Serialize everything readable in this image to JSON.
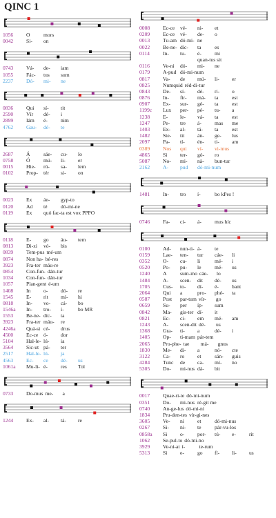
{
  "title": "QINC 1",
  "columns": [
    {
      "sections": [
        {
          "rows": [
            {
              "id": "1056",
              "cells": [
                "O",
                "mors"
              ]
            },
            {
              "id": "0042",
              "cells": [
                "Si-",
                "on"
              ]
            }
          ]
        },
        {
          "rows": [
            {
              "id": "0743",
              "cells": [
                "Vá-",
                "de-",
                "iam"
              ]
            },
            {
              "id": "1055",
              "cells": [
                "Fác-",
                "tus",
                "sum"
              ]
            },
            {
              "id": "2237",
              "cells": [
                "Dó-",
                "mi-",
                "ne"
              ],
              "color": "#4aa3df"
            }
          ]
        },
        {
          "rows": [
            {
              "id": "0836",
              "cells": [
                "Qui",
                "sí-",
                "tit"
              ]
            },
            {
              "id": "2590",
              "cells": [
                "Vír",
                "dé-",
                "i"
              ]
            },
            {
              "id": "2899",
              "cells": [
                "Iám",
                "é-",
                "nim"
              ]
            },
            {
              "id": "4762",
              "cells": [
                "Gau-",
                "dé-",
                "te"
              ],
              "color": "#4aa3df"
            }
          ]
        },
        {
          "rows": [
            {
              "id": "2687",
              "cells": [
                "Á",
                "sáe-",
                "cu-",
                "lo"
              ]
            },
            {
              "id": "0758",
              "cells": [
                "Ó",
                "mú-",
                "li-",
                "er"
              ]
            },
            {
              "id": "0015",
              "cells": [
                "Hie-",
                "rú-",
                "sa-",
                "lem"
              ]
            },
            {
              "id": "0102",
              "cells": [
                "Prop-",
                "tér",
                "si-",
                "on"
              ]
            }
          ]
        },
        {
          "rows": [
            {
              "id": "0023",
              "cells": [
                "Ex",
                "áe-",
                "gyp-to"
              ]
            },
            {
              "id": "0120",
              "cells": [
                "Ad",
                "té",
                "dó-mi-ne"
              ]
            },
            {
              "id": "0119",
              "cells": [
                "Ex",
                "quó fac-ta est vox PPPO"
              ]
            }
          ]
        },
        {
          "rows": [
            {
              "id": "0118",
              "cells": [
                "E-",
                "go",
                "áu-",
                "tem"
              ]
            },
            {
              "id": "0813",
              "cells": [
                "Di-xi",
                "vó-",
                "bis"
              ]
            },
            {
              "id": "0839",
              "cells": [
                "Tem-pus",
                "mé-um"
              ]
            },
            {
              "id": "0874",
              "cells": [
                "Non ha-",
                "bé-res"
              ]
            },
            {
              "id": "3923",
              "cells": [
                "Fra-ter",
                "máu-re"
              ]
            },
            {
              "id": "0854",
              "cells": [
                "Con-fun-",
                "dán-tur"
              ]
            },
            {
              "id": "1034",
              "cells": [
                "Con-fun-",
                "dán-tur"
              ]
            },
            {
              "id": "1057",
              "cells": [
                "Plan-gent",
                "é-um"
              ]
            },
            {
              "id": "1408",
              "cells": [
                "In",
                "o-",
                "dó-",
                "re"
              ]
            },
            {
              "id": "1545",
              "cells": [
                "E-",
                "rit",
                "mí-",
                "hi"
              ]
            },
            {
              "id": "0818",
              "cells": [
                "In-",
                "vo-",
                "cá-",
                "bo"
              ]
            },
            {
              "id": "1546a",
              "cells": [
                "In-",
                "tro-",
                "í-",
                "bo MR"
              ]
            },
            {
              "id": "1553",
              "cells": [
                "Be-ne-",
                "díc-",
                "ta"
              ]
            },
            {
              "id": "3923",
              "cells": [
                "Fra-ter",
                "máu-",
                "re"
              ]
            },
            {
              "id": "4246a",
              "cells": [
                "Quá-si",
                "cé-",
                "drus"
              ]
            },
            {
              "id": "4500",
              "cells": [
                "Ec-ce",
                "ó-",
                "dor"
              ]
            },
            {
              "id": "5104",
              "cells": [
                "Hal-le-",
                "lú-",
                "ia"
              ]
            },
            {
              "id": "3564",
              "cells": [
                "Sic-ut",
                "pá-",
                "ter"
              ]
            },
            {
              "id": "2517",
              "cells": [
                "Hal-le-",
                "lú-",
                "ja"
              ],
              "color": "#4aa3df"
            },
            {
              "id": "4563",
              "cells": [
                "Ec-",
                "ce",
                "dé-",
                "us"
              ],
              "color": "#4aa3df"
            },
            {
              "id": "1061a",
              "cells": [
                "Mu-li-",
                "é-",
                "res",
                "Tol"
              ]
            }
          ]
        },
        {
          "rows": [
            {
              "id": "0733",
              "cells": [
                "Do-mus",
                "me-",
                "a"
              ]
            }
          ]
        },
        {
          "rows": [
            {
              "id": "1244",
              "cells": [
                "Ex-",
                "al-",
                "tá-",
                "re"
              ]
            }
          ]
        }
      ]
    },
    {
      "sections": [
        {
          "rows": [
            {
              "id": "0008",
              "cells": [
                "Ec-ce",
                "vé-",
                "ni-",
                "et"
              ]
            },
            {
              "id": "0209",
              "cells": [
                "Ec-ce",
                "vé-",
                "de-",
                "o"
              ]
            },
            {
              "id": "0013",
              "cells": [
                "Tu-am",
                "dó-mi-",
                "ne"
              ]
            },
            {
              "id": "0022",
              "cells": [
                "Be-ne-",
                "díc-",
                "ta",
                "es"
              ]
            },
            {
              "id": "0114",
              "cells": [
                "In-",
                "tu-",
                "é-",
                "mi"
              ]
            },
            {
              "cells": [
                "",
                "",
                "quan-tus sit"
              ]
            },
            {
              "id": "0116",
              "cells": [
                "Ve-ni",
                "dó-",
                "mi-",
                "ne"
              ]
            },
            {
              "id": "0179",
              "cells": [
                "A-pud",
                "dó-mi-num"
              ]
            },
            {
              "id": "0817",
              "cells": [
                "Va-",
                "de",
                "mú-",
                "li-",
                "er"
              ]
            },
            {
              "id": "0825",
              "cells": [
                "Numquid",
                "réd-di-tur"
              ]
            },
            {
              "id": "0843",
              "cells": [
                "De-",
                "sí-",
                "dé-",
                "ri-",
                "o"
              ]
            },
            {
              "id": "0876",
              "cells": [
                "In-",
                "fir-",
                "má-",
                "ta",
                "est"
              ]
            },
            {
              "id": "0907",
              "cells": [
                "Ex-",
                "sur-",
                "gé-",
                "ta",
                "est"
              ]
            },
            {
              "id": "1199c",
              "cells": [
                "Lux",
                "per-",
                "pé-",
                "tu-",
                "a"
              ]
            },
            {
              "id": "1238",
              "cells": [
                "E-",
                "le-",
                "vá-",
                "ta",
                "est"
              ]
            },
            {
              "id": "1247",
              "cells": [
                "Pe-",
                "tre",
                "á-",
                "mas",
                "me"
              ]
            },
            {
              "id": "1403",
              "cells": [
                "Ex-",
                "al-",
                "tá-",
                "ta",
                "est"
              ]
            },
            {
              "id": "1482",
              "cells": [
                "Ste-",
                "tit",
                "án-",
                "ge-",
                "lus"
              ]
            },
            {
              "id": "2097",
              "cells": [
                "Pa-",
                "tí-",
                "én-",
                "ti-",
                "am"
              ]
            },
            {
              "id": "0389",
              "cells": [
                "Nos",
                "qui",
                "ví-",
                "vi-mus"
              ],
              "color": "#e8743b"
            },
            {
              "id": "4865",
              "cells": [
                "Si",
                "ter-",
                "gó-",
                "ro"
              ]
            },
            {
              "id": "5087",
              "cells": [
                "No-",
                "mi-",
                "nà-",
                "bun-tur"
              ]
            },
            {
              "id": "2162",
              "cells": [
                "A-",
                "pud",
                "dó-mi-num"
              ],
              "color": "#4aa3df"
            }
          ]
        },
        {
          "rows": [
            {
              "id": "1481",
              "cells": [
                "In-",
                "tro",
                "í-",
                "bo kPes !"
              ]
            }
          ]
        },
        {
          "rows": [
            {
              "id": "0746",
              "cells": [
                "Fa-",
                "ci-",
                "á-",
                "mus híc"
              ]
            }
          ]
        },
        {
          "rows": [
            {
              "id": "0100",
              "cells": [
                "Ad-",
                "nun-ti-",
                "á-",
                "te"
              ]
            },
            {
              "id": "0159",
              "cells": [
                "Lae-",
                "ten-",
                "tur",
                "cáe-",
                "li"
              ]
            },
            {
              "id": "0352",
              "cells": [
                "O-",
                "cu-",
                "li",
                "mé-",
                "i"
              ]
            },
            {
              "id": "0520",
              "cells": [
                "Po-",
                "pu-",
                "le",
                "mé-",
                "us"
              ]
            },
            {
              "id": "1240",
              "cells": [
                "A",
                "sum-mo",
                "cáe-",
                "lo"
              ]
            },
            {
              "id": "1484",
              "cells": [
                "A-",
                "scen-",
                "dit",
                "dé-",
                "us"
              ]
            },
            {
              "id": "1705",
              "cells": [
                "Cus-",
                "to-",
                "dí-",
                "é-",
                "bant"
              ]
            },
            {
              "id": "2064",
              "cells": [
                "Qui",
                "a",
                "pro-",
                "phé-",
                "ta"
              ]
            },
            {
              "id": "0587",
              "cells": [
                "Post",
                "par-tum",
                "vír-",
                "go"
              ]
            },
            {
              "id": "0659",
              "cells": [
                "Su-",
                "per",
                "íp-",
                "sum"
              ]
            },
            {
              "id": "0842",
              "cells": [
                "Ma-",
                "gis-ter",
                "dí-",
                "it"
              ]
            },
            {
              "id": "0821",
              "cells": [
                "Ec-",
                "ci-",
                "em",
                "mé-",
                "am"
              ]
            },
            {
              "id": "1243",
              "cells": [
                "A-",
                "scen-dit",
                "dé-",
                "us"
              ]
            },
            {
              "id": "1368",
              "cells": [
                "Gra-",
                "ti-",
                "a",
                "dé-",
                "i"
              ]
            },
            {
              "id": "1405",
              "cells": [
                "Op-",
                "ti-mam",
                "pár-tem"
              ]
            },
            {
              "id": "2065",
              "cells": [
                "Pro-phe-",
                "tae",
                "má-",
                "gnus"
              ]
            },
            {
              "id": "1830",
              "cells": [
                "Me-",
                "di-",
                "a",
                "nó-",
                "cte"
              ]
            },
            {
              "id": "3122",
              "cells": [
                "Ca-",
                "ro",
                "et",
                "sán-",
                "guis"
              ]
            },
            {
              "id": "4284",
              "cells": [
                "Tunc",
                "de",
                "ca-",
                "mí-",
                "no"
              ]
            },
            {
              "id": "5305",
              "cells": [
                "Do-",
                "mi-nus",
                "dá-",
                "bit"
              ]
            }
          ]
        },
        {
          "rows": [
            {
              "id": "0017",
              "cells": [
                "Quae-ri-te",
                "dó-mi-num"
              ]
            },
            {
              "id": "0351",
              "cells": [
                "Do-",
                "mi-nus",
                "ré-git me"
              ]
            },
            {
              "id": "0740",
              "cells": [
                "An-ge-lus",
                "dó-mi-ni"
              ]
            },
            {
              "id": "1834",
              "cells": [
                "Pru-den-tes",
                "vír-gi-nes"
              ]
            },
            {
              "id": "3605",
              "cells": [
                "Ve-",
                "ni",
                "et",
                "dó-mi-nus"
              ]
            },
            {
              "id": "0267",
              "cells": [
                "Si-",
                "ni-",
                "te",
                "pár-vu-los"
              ]
            },
            {
              "id": "0858a",
              "cells": [
                "Si",
                "o-",
                "por-",
                "tú-",
                "e-",
                "rit"
              ]
            },
            {
              "id": "1062",
              "cells": [
                "Se-pul-to",
                "dó-mi-no"
              ]
            },
            {
              "id": "3929",
              "cells": [
                "Ve-ni-at",
                "í-",
                "te-rum"
              ]
            },
            {
              "id": "5313",
              "cells": [
                "Si",
                "e-",
                "go",
                "fí-",
                "li-",
                "us"
              ]
            }
          ]
        }
      ]
    }
  ]
}
